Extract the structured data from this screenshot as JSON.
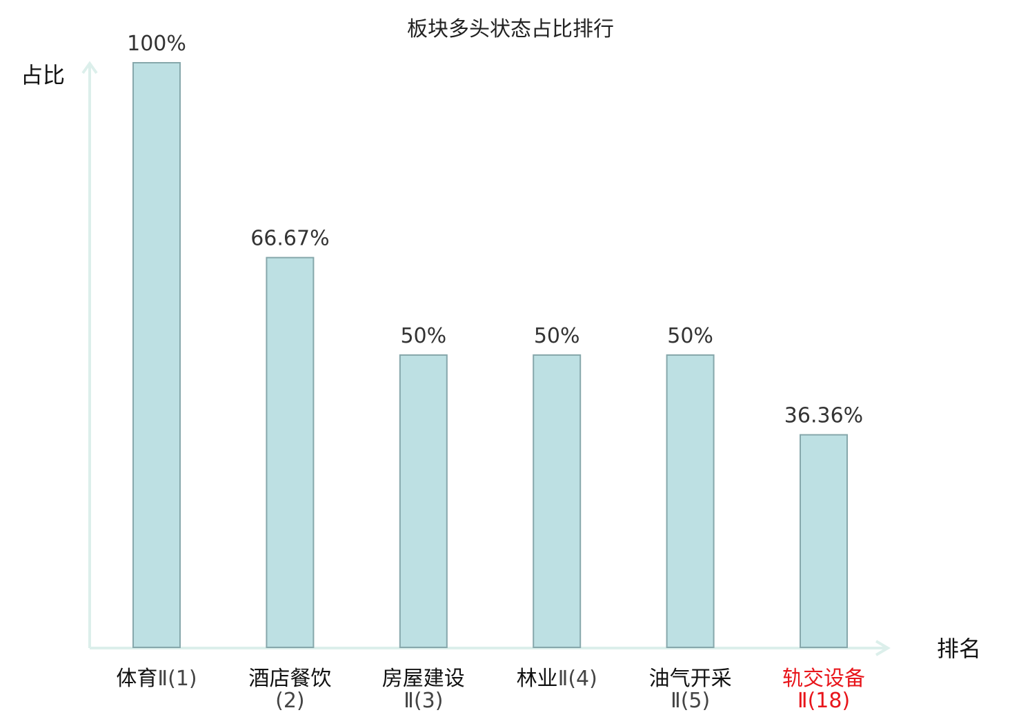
{
  "chart_data": {
    "type": "bar",
    "title": "板块多头状态占比排行",
    "ylabel": "占比",
    "xlabel": "排名",
    "categories": [
      {
        "name": "体育",
        "rank": "Ⅱ(1)"
      },
      {
        "name": "酒店餐饮",
        "rank": "(2)"
      },
      {
        "name": "房屋建设",
        "rank": "Ⅱ(3)"
      },
      {
        "name": "林业",
        "rank": "Ⅱ(4)"
      },
      {
        "name": "油气开采",
        "rank": "Ⅱ(5)"
      },
      {
        "name": "轨交设备",
        "rank": "Ⅱ(18)"
      }
    ],
    "values": [
      100,
      66.67,
      50,
      50,
      50,
      36.36
    ],
    "value_labels": [
      "100%",
      "66.67%",
      "50%",
      "50%",
      "50%",
      "36.36%"
    ],
    "ylim": [
      0,
      100
    ],
    "grid": false,
    "highlight_index": 5,
    "colors": {
      "bar_fill": "#bde0e3",
      "bar_stroke": "#86a7ab",
      "axis": "#dcefeb",
      "highlight": "#e8151b",
      "text": "#111111",
      "value_text": "#333333",
      "rank_text": "#444444"
    }
  }
}
